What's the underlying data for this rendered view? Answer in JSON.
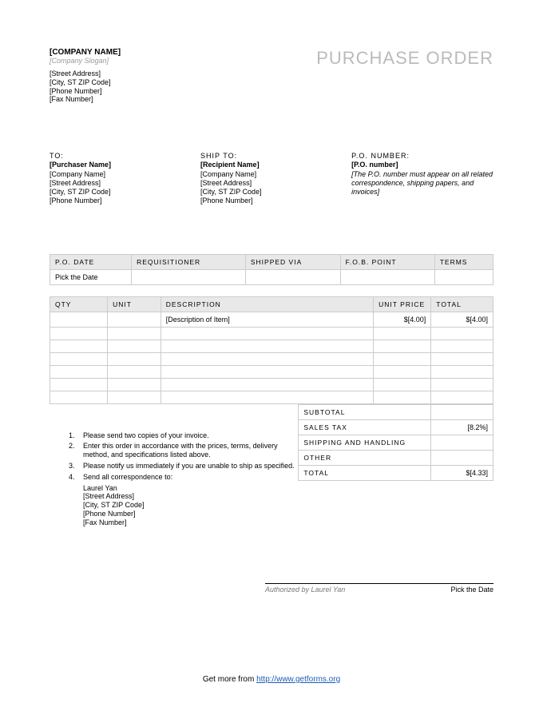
{
  "header": {
    "company_name": "[COMPANY NAME]",
    "slogan": "[Company Slogan]",
    "street": "[Street Address]",
    "city_zip": "[City, ST ZIP Code]",
    "phone": "[Phone Number]",
    "fax": "[Fax Number]",
    "doc_title": "PURCHASE ORDER"
  },
  "to": {
    "label": "TO:",
    "name": "[Purchaser Name]",
    "company": "[Company Name]",
    "street": "[Street Address]",
    "city_zip": "[City, ST  ZIP Code]",
    "phone": "[Phone Number]"
  },
  "ship_to": {
    "label": "SHIP TO:",
    "name": "[Recipient Name]",
    "company": "[Company Name]",
    "street": "[Street Address]",
    "city_zip": "[City, ST  ZIP Code]",
    "phone": "[Phone Number]"
  },
  "po_num": {
    "label": "P.O. NUMBER:",
    "value": "[P.O. number]",
    "note": "[The P.O. number must appear on all related correspondence, shipping papers, and invoices]"
  },
  "header_table": {
    "cols": [
      "P.O. DATE",
      "REQUISITIONER",
      "SHIPPED VIA",
      "F.O.B. POINT",
      "TERMS"
    ],
    "row": [
      "Pick the Date",
      "",
      "",
      "",
      ""
    ]
  },
  "items_table": {
    "cols": [
      "QTY",
      "UNIT",
      "DESCRIPTION",
      "UNIT PRICE",
      "TOTAL"
    ],
    "col_widths": [
      "13%",
      "12%",
      "48%",
      "13%",
      "14%"
    ],
    "rows": [
      [
        "",
        "",
        "[Description of Item]",
        "$[4.00]",
        "$[4.00]"
      ],
      [
        "",
        "",
        "",
        "",
        ""
      ],
      [
        "",
        "",
        "",
        "",
        ""
      ],
      [
        "",
        "",
        "",
        "",
        ""
      ],
      [
        "",
        "",
        "",
        "",
        ""
      ],
      [
        "",
        "",
        "",
        "",
        ""
      ],
      [
        "",
        "",
        "",
        "",
        ""
      ]
    ]
  },
  "totals": {
    "rows": [
      {
        "label": "SUBTOTAL",
        "value": ""
      },
      {
        "label": "SALES TAX",
        "value": "[8.2%]"
      },
      {
        "label": "SHIPPING AND HANDLING",
        "value": ""
      },
      {
        "label": "OTHER",
        "value": ""
      },
      {
        "label": "TOTAL",
        "value": "$[4.33]"
      }
    ]
  },
  "notes": {
    "items": [
      "Please send two copies of your invoice.",
      "Enter this order in accordance with the prices, terms, delivery method, and specifications listed above.",
      "Please notify us immediately if you are unable to ship as specified.",
      "Send all correspondence to:"
    ],
    "subs": [
      "Laurel Yan",
      "[Street Address]",
      "[City, ST ZIP Code]",
      "[Phone Number]",
      "[Fax Number]"
    ]
  },
  "signature": {
    "auth": "Authorized by Laurel Yan",
    "date": "Pick the Date"
  },
  "footer": {
    "prefix": "Get more from ",
    "link_text": "http://www.getforms.org"
  },
  "styling": {
    "header_bg": "#e8e8e8",
    "border_color": "#cccccc",
    "title_color": "#bbbbbb",
    "slogan_color": "#999999",
    "link_color": "#1a5db4",
    "body_font_size": 9,
    "title_font_size": 22
  }
}
